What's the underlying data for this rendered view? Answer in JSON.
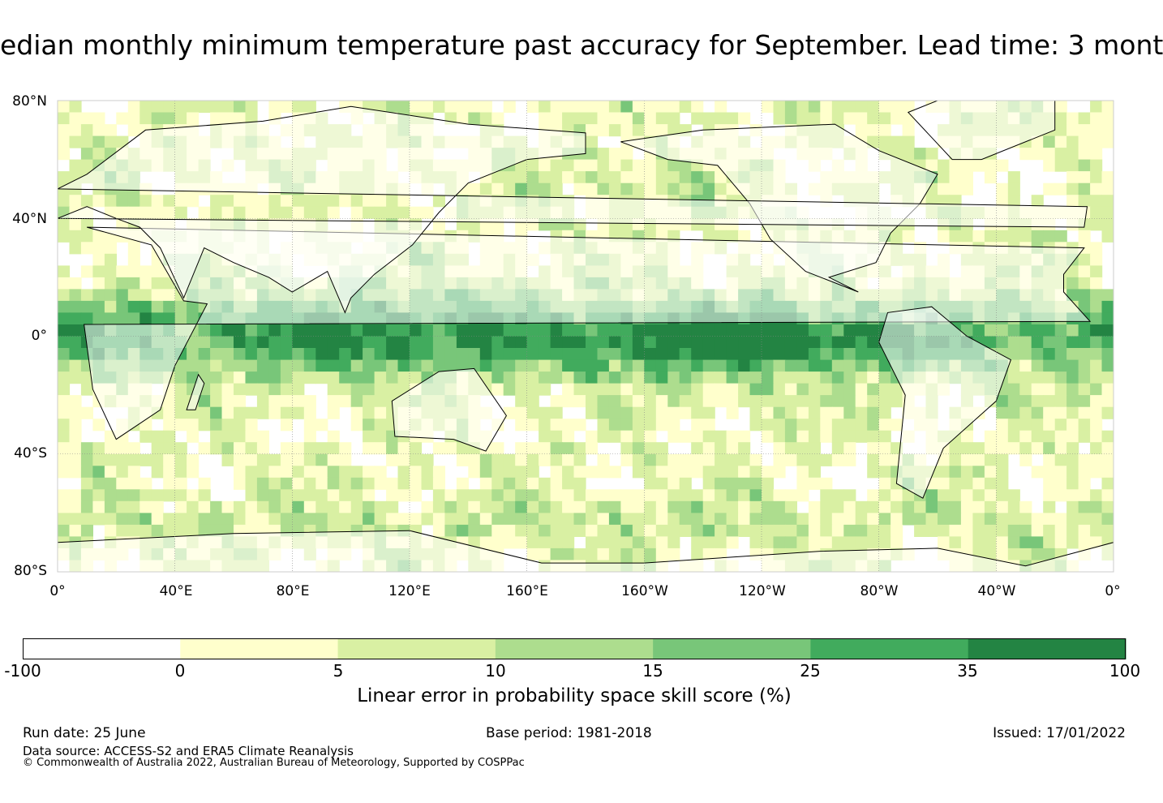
{
  "title": "edian monthly minimum temperature past accuracy for September. Lead time: 3 mont",
  "map": {
    "lat_labels": [
      "80°N",
      "40°N",
      "0°",
      "40°S",
      "80°S"
    ],
    "lon_labels": [
      "0°",
      "40°E",
      "80°E",
      "120°E",
      "160°E",
      "160°W",
      "120°W",
      "80°W",
      "40°W",
      "0°"
    ],
    "palette": [
      "#ffffff",
      "#ffffcc",
      "#d9f0a3",
      "#addd8e",
      "#78c679",
      "#41ab5d",
      "#238443"
    ],
    "land_color": "#ffffff",
    "coast_color": "#000000",
    "grid": true
  },
  "colorbar": {
    "ticks": [
      "-100",
      "0",
      "5",
      "10",
      "15",
      "25",
      "35",
      "100"
    ],
    "bins": [
      "#ffffff",
      "#ffffcc",
      "#d9f0a3",
      "#addd8e",
      "#78c679",
      "#41ab5d",
      "#238443"
    ],
    "label": "Linear error in probability space skill score (%)"
  },
  "footer": {
    "run_date": "Run date: 25 June",
    "base_period": "Base period: 1981-2018",
    "issued": "Issued: 17/01/2022",
    "data_source": "Data source: ACCESS-S2 and ERA5 Climate Reanalysis",
    "copyright": "© Commonwealth of Australia 2022, Australian Bureau of Meteorology, Supported by COSPPac"
  }
}
